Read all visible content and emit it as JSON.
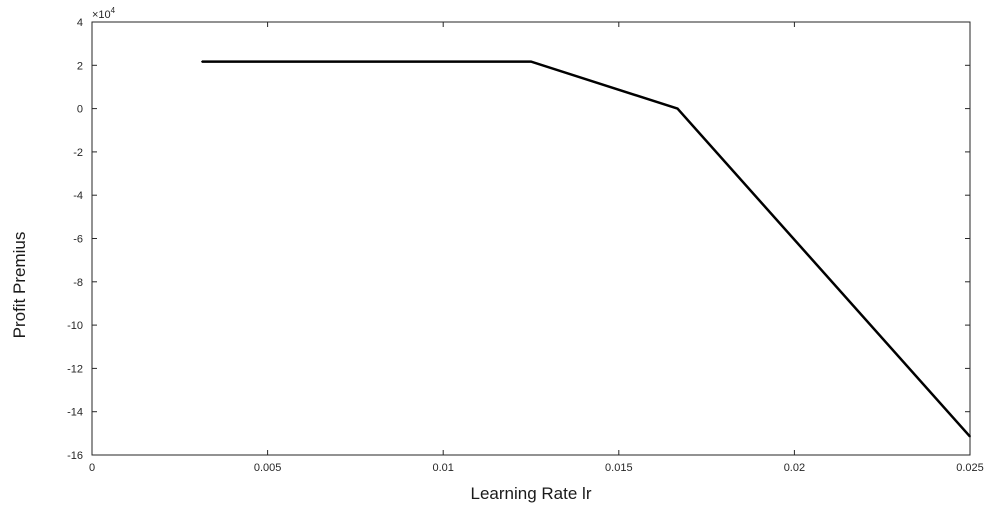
{
  "chart_data": {
    "type": "line",
    "title": "",
    "xlabel": "Learning Rate lr",
    "ylabel": "Profit Premius",
    "xlim": [
      0,
      0.025
    ],
    "ylim": [
      -160000,
      40000
    ],
    "y_exponent_label": "×10",
    "y_exponent_power": "4",
    "x_ticks": [
      {
        "value": 0,
        "label": "0"
      },
      {
        "value": 0.005,
        "label": "0.005"
      },
      {
        "value": 0.01,
        "label": "0.01"
      },
      {
        "value": 0.015,
        "label": "0.015"
      },
      {
        "value": 0.02,
        "label": "0.02"
      },
      {
        "value": 0.025,
        "label": "0.025"
      }
    ],
    "y_ticks": [
      {
        "value": 40000,
        "label": "4"
      },
      {
        "value": 20000,
        "label": "2"
      },
      {
        "value": 0,
        "label": "0"
      },
      {
        "value": -20000,
        "label": "-2"
      },
      {
        "value": -40000,
        "label": "-4"
      },
      {
        "value": -60000,
        "label": "-6"
      },
      {
        "value": -80000,
        "label": "-8"
      },
      {
        "value": -100000,
        "label": "-10"
      },
      {
        "value": -120000,
        "label": "-12"
      },
      {
        "value": -140000,
        "label": "-14"
      },
      {
        "value": -160000,
        "label": "-16"
      }
    ],
    "grid": false,
    "box": true,
    "series": [
      {
        "color": "#000000",
        "x": [
          0.00313,
          0.0125,
          0.01667,
          0.025
        ],
        "y": [
          21700,
          21700,
          0,
          -151500
        ]
      }
    ]
  }
}
